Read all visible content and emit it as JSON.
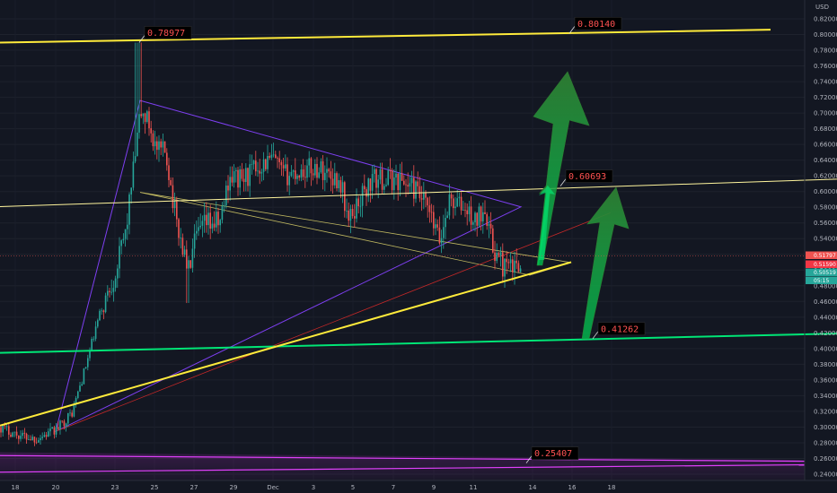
{
  "chart_data": {
    "type": "candlestick",
    "currency": "USD",
    "y_range": [
      0.235,
      0.83
    ],
    "y_ticks": [
      "0.82000",
      "0.80000",
      "0.78000",
      "0.76000",
      "0.74000",
      "0.72000",
      "0.70000",
      "0.68000",
      "0.66000",
      "0.64000",
      "0.62000",
      "0.60000",
      "0.58000",
      "0.56000",
      "0.54000",
      "0.52000",
      "0.50000",
      "0.48000",
      "0.46000",
      "0.44000",
      "0.42000",
      "0.40000",
      "0.38000",
      "0.36000",
      "0.34000",
      "0.32000",
      "0.30000",
      "0.28000",
      "0.26000",
      "0.24000"
    ],
    "x_ticks": [
      "18",
      "20",
      "23",
      "25",
      "27",
      "29",
      "Dec",
      "3",
      "5",
      "7",
      "9",
      "11",
      "14",
      "16",
      "18"
    ],
    "price_tags": [
      {
        "label": "0.51797",
        "color": "#ef5350"
      },
      {
        "label": "0.51590",
        "color": "#f23645"
      },
      {
        "label": "0.50519",
        "color": "#26a69a"
      },
      {
        "label": "05:15",
        "color": "#26a69a"
      }
    ],
    "callouts": [
      {
        "label": "0.78977",
        "value": 0.78977
      },
      {
        "label": "0.80140",
        "value": 0.8014
      },
      {
        "label": "0.60693",
        "value": 0.60693
      },
      {
        "label": "0.41262",
        "value": 0.41262
      },
      {
        "label": "0.25407",
        "value": 0.25407
      }
    ],
    "trend_lines": [
      {
        "name": "resistance-top",
        "color": "#ffeb3b",
        "from": 0.78977,
        "to": 0.8061
      },
      {
        "name": "mid-resistance",
        "color": "#fff59d",
        "from": 0.5808,
        "to": 0.6158
      },
      {
        "name": "support-green",
        "color": "#00e676",
        "from": 0.3946,
        "to": 0.4191
      },
      {
        "name": "rising-support",
        "color": "#ffeb3b",
        "from": 0.3019,
        "to": 0.5101
      },
      {
        "name": "base-magenta",
        "color": "#e040fb",
        "from": 0.2426,
        "to": 0.252
      }
    ],
    "close_price": 0.51797
  },
  "axis": {
    "currency_label": "USD"
  }
}
